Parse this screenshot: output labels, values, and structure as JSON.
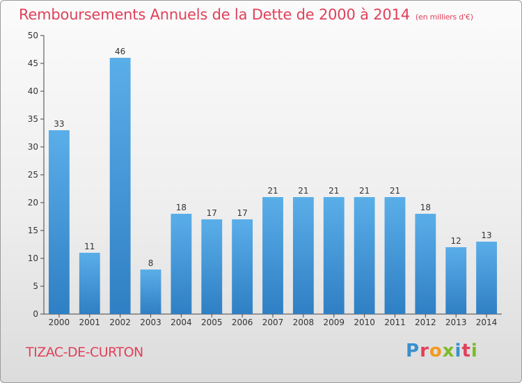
{
  "chart_data": {
    "type": "bar",
    "title": "Remboursements Annuels de la Dette de 2000 à 2014",
    "subtitle": "(en milliers d'€)",
    "categories": [
      "2000",
      "2001",
      "2002",
      "2003",
      "2004",
      "2005",
      "2006",
      "2007",
      "2008",
      "2009",
      "2010",
      "2011",
      "2012",
      "2013",
      "2014"
    ],
    "values": [
      33,
      11,
      46,
      8,
      18,
      17,
      17,
      21,
      21,
      21,
      21,
      21,
      18,
      12,
      13
    ],
    "ylim": [
      0,
      50
    ],
    "yticks": [
      0,
      5,
      10,
      15,
      20,
      25,
      30,
      35,
      40,
      45,
      50
    ],
    "xlabel": "",
    "ylabel": "",
    "grid": false,
    "bar_color": "#3d8fd6"
  },
  "footer": {
    "city": "TIZAC-DE-CURTON",
    "logo_text": "Proxiti"
  },
  "colors": {
    "title": "#e0405a",
    "logo": [
      "#3a8fd0",
      "#e0405a",
      "#f39a1f",
      "#7cbb2a",
      "#3a8fd0",
      "#e0405a",
      "#7cbb2a"
    ]
  }
}
